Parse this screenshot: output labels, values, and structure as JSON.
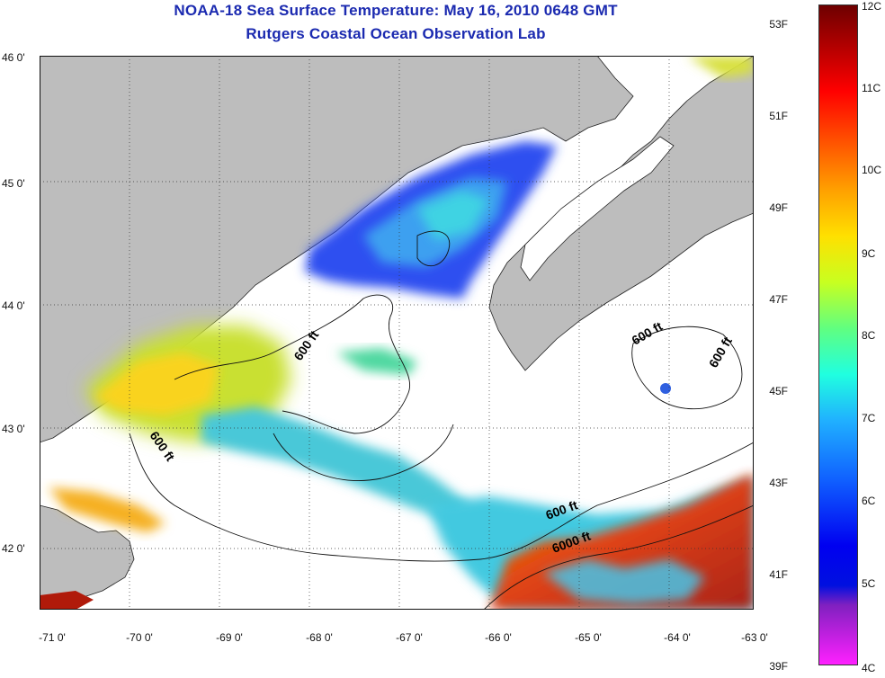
{
  "title": {
    "line1": "NOAA-18 Sea Surface Temperature:  May 16, 2010 0648 GMT",
    "line2": "Rutgers Coastal Ocean Observation Lab"
  },
  "map": {
    "lat_labels": [
      "46 0'",
      "45 0'",
      "44 0'",
      "43 0'",
      "42 0'"
    ],
    "lon_labels": [
      "-71 0'",
      "-70 0'",
      "-69 0'",
      "-68 0'",
      "-67 0'",
      "-66 0'",
      "-65 0'",
      "-64 0'",
      "-63 0'"
    ],
    "contour_labels": [
      "600 ft",
      "600 ft",
      "600 ft",
      "600 ft",
      "600 ft",
      "6000 ft"
    ],
    "colors": {
      "land": "#bdbdbd",
      "no_data": "#ffffff",
      "warm": "#d22a0a",
      "cold": "#1a2fe0"
    }
  },
  "colorbar": {
    "fahrenheit_labels": [
      "53F",
      "51F",
      "49F",
      "47F",
      "45F",
      "43F",
      "41F",
      "39F"
    ],
    "celsius_labels": [
      "12C",
      "11C",
      "10C",
      "9C",
      "8C",
      "7C",
      "6C",
      "5C",
      "4C"
    ]
  }
}
